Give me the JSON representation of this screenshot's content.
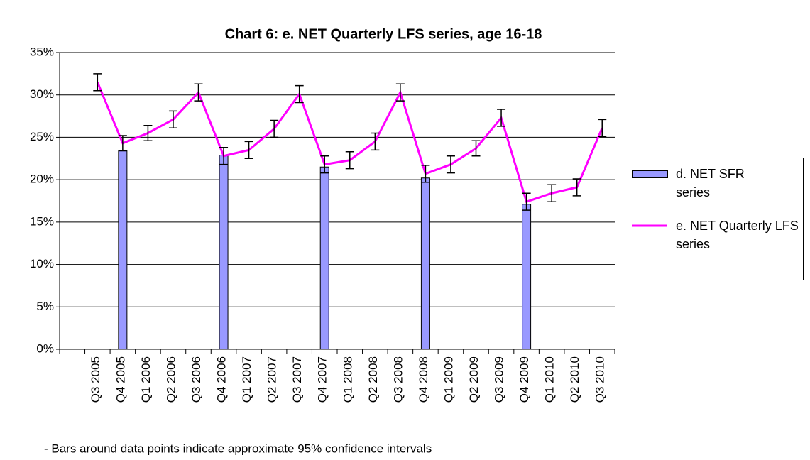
{
  "chart_data": {
    "type": "bar-line",
    "title": "Chart 6: e. NET Quarterly LFS series, age 16-18",
    "footnote": "- Bars around data points indicate approximate 95% confidence intervals",
    "categories": [
      null,
      "Q3 2005",
      "Q4 2005",
      "Q1 2006",
      "Q2 2006",
      "Q3 2006",
      "Q4 2006",
      "Q1 2007",
      "Q2 2007",
      "Q3 2007",
      "Q4 2007",
      "Q1 2008",
      "Q2 2008",
      "Q3 2008",
      "Q4 2008",
      "Q1 2009",
      "Q2 2009",
      "Q3 2009",
      "Q4 2009",
      "Q1 2010",
      "Q2 2010",
      "Q3 2010"
    ],
    "series": [
      {
        "name": "d. NET SFR series",
        "type": "bar",
        "color": "#9999ff",
        "values": [
          null,
          null,
          23.4,
          null,
          null,
          null,
          22.9,
          null,
          null,
          null,
          21.5,
          null,
          null,
          null,
          20.2,
          null,
          null,
          null,
          17.1,
          null,
          null,
          null
        ]
      },
      {
        "name": "e. NET Quarterly LFS series",
        "type": "line",
        "color": "#ff00ff",
        "values": [
          null,
          31.5,
          24.3,
          25.5,
          27.1,
          30.3,
          22.8,
          23.5,
          26.0,
          30.1,
          21.8,
          22.3,
          24.5,
          30.3,
          20.7,
          21.8,
          23.7,
          27.3,
          17.4,
          18.4,
          19.1,
          26.1
        ],
        "errors": [
          null,
          1.0,
          0.9,
          0.9,
          1.0,
          1.0,
          1.0,
          1.0,
          1.0,
          1.0,
          1.0,
          1.0,
          1.0,
          1.0,
          1.0,
          1.0,
          0.9,
          1.0,
          1.0,
          1.0,
          1.0,
          1.0
        ]
      }
    ],
    "ylim": [
      0,
      35
    ],
    "yticks": [
      {
        "value": 0,
        "label": "0%"
      },
      {
        "value": 5,
        "label": "5%"
      },
      {
        "value": 10,
        "label": "10%"
      },
      {
        "value": 15,
        "label": "15%"
      },
      {
        "value": 20,
        "label": "20%"
      },
      {
        "value": 25,
        "label": "25%"
      },
      {
        "value": 30,
        "label": "30%"
      },
      {
        "value": 35,
        "label": "35%"
      }
    ],
    "grid": true,
    "legend": "right"
  }
}
